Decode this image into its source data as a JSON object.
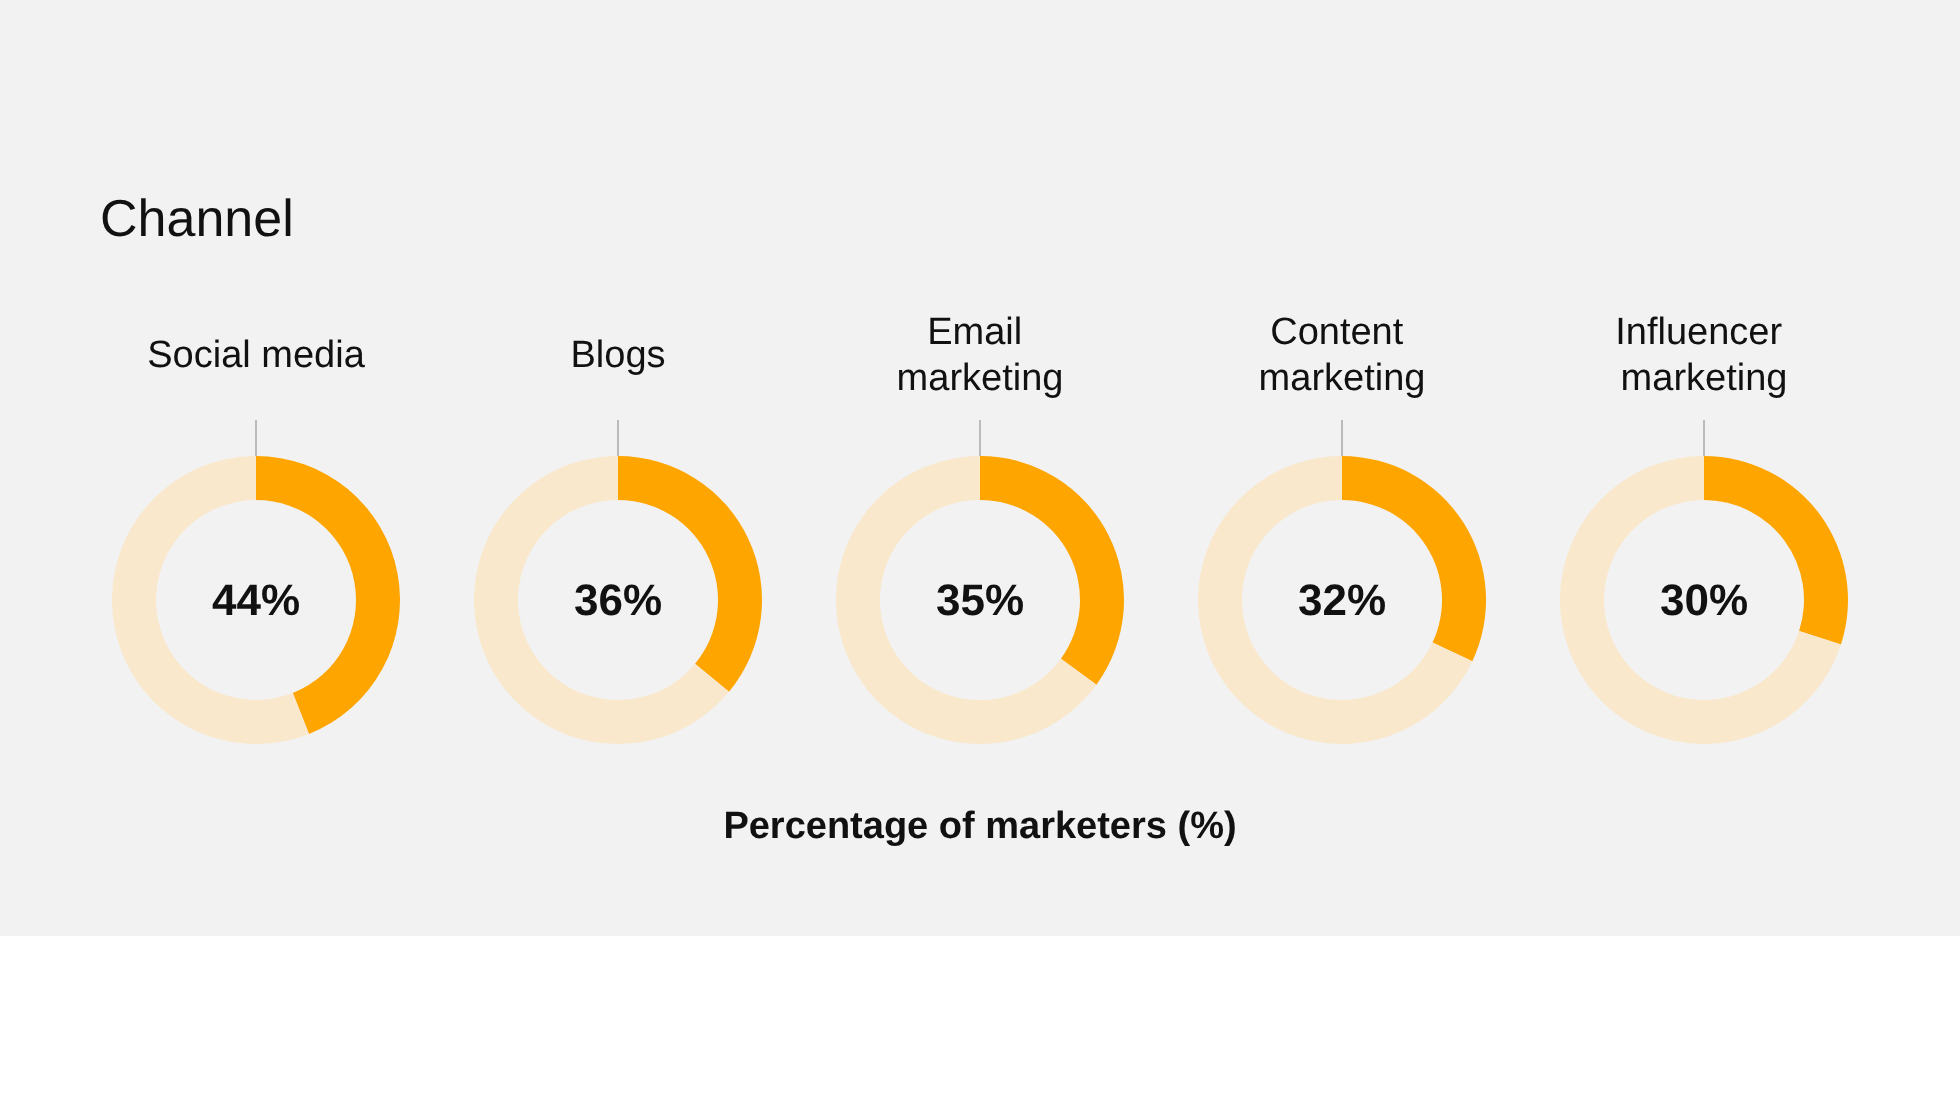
{
  "chart_data": [
    {
      "type": "donut",
      "title": "Channel",
      "categories": [
        "Social media",
        null
      ],
      "values": [
        44,
        56
      ],
      "colors": [
        "#ffa500",
        "#f9e8cc"
      ],
      "value_labels": [
        "44%",
        null
      ]
    },
    {
      "type": "donut",
      "categories": [
        "Blogs",
        null
      ],
      "values": [
        36,
        64
      ],
      "colors": [
        "#ffa500",
        "#f9e8cc"
      ],
      "value_labels": [
        "36%",
        null
      ]
    },
    {
      "type": "donut",
      "xlabel": "Percentage of marketers (%)",
      "categories": [
        "Email marketing",
        null
      ],
      "values": [
        35,
        65
      ],
      "colors": [
        "#ffa500",
        "#f9e8cc"
      ],
      "value_labels": [
        "35%",
        null
      ]
    },
    {
      "type": "donut",
      "categories": [
        "Content marketing",
        null
      ],
      "values": [
        32,
        68
      ],
      "colors": [
        "#ffa500",
        "#f9e8cc"
      ],
      "value_labels": [
        "32%",
        null
      ]
    },
    {
      "type": "donut",
      "categories": [
        "Influencer marketing",
        null
      ],
      "values": [
        30,
        70
      ],
      "colors": [
        "#ffa500",
        "#f9e8cc"
      ],
      "value_labels": [
        "30%",
        null
      ]
    }
  ]
}
